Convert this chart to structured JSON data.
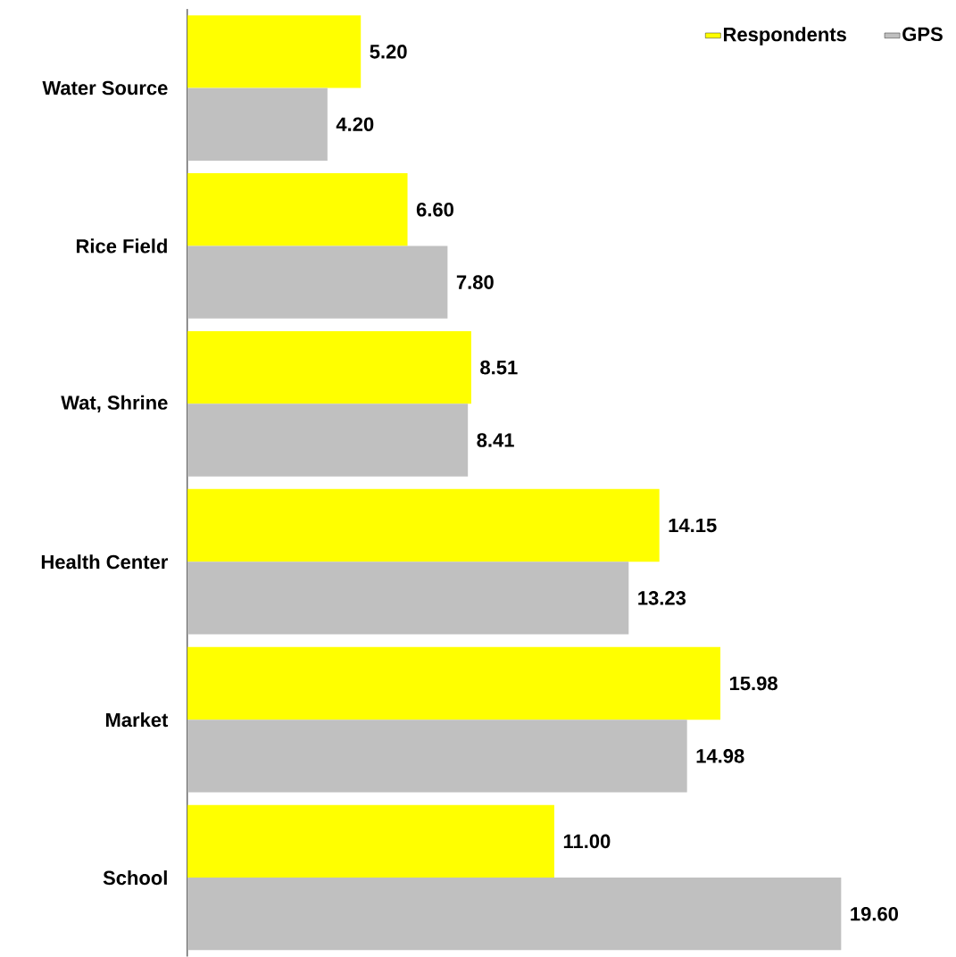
{
  "chart_data": {
    "type": "bar",
    "orientation": "horizontal",
    "categories": [
      "Water Source",
      "Rice Field",
      "Wat, Shrine",
      "Health Center",
      "Market",
      "School"
    ],
    "series": [
      {
        "name": "Respondents",
        "color": "#ffff00",
        "values": [
          5.2,
          6.6,
          8.51,
          14.15,
          15.98,
          11.0
        ],
        "value_labels": [
          "5.20",
          "6.60",
          "8.51",
          "14.15",
          "15.98",
          "11.00"
        ]
      },
      {
        "name": "GPS",
        "color": "#c0c0c0",
        "values": [
          4.2,
          7.8,
          8.41,
          13.23,
          14.98,
          19.6
        ],
        "value_labels": [
          "4.20",
          "7.80",
          "8.41",
          "13.23",
          "14.98",
          "19.60"
        ]
      }
    ],
    "tick_labels": "y",
    "legend": "top right"
  }
}
